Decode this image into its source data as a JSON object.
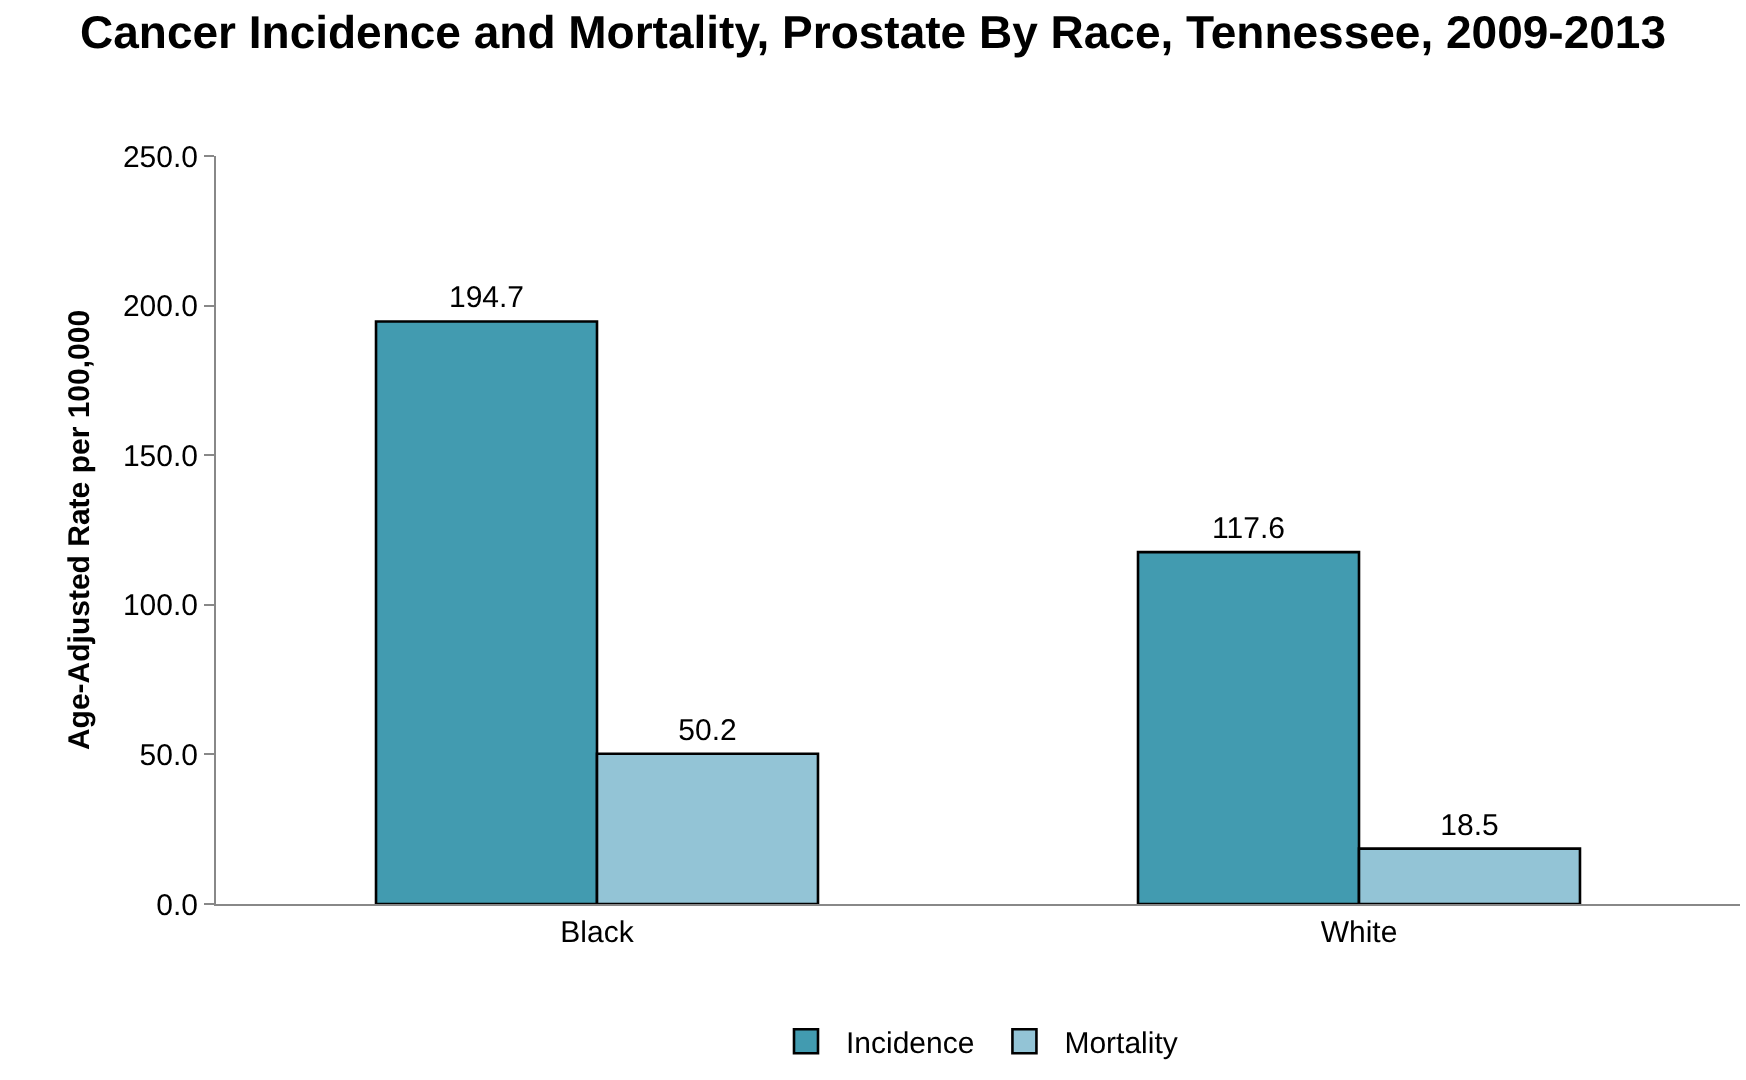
{
  "chart_data": {
    "type": "bar",
    "title": "Cancer Incidence and Mortality, Prostate By Race, Tennessee, 2009-2013",
    "ylabel": "Age-Adjusted Rate per 100,000",
    "categories": [
      "Black",
      "White"
    ],
    "series": [
      {
        "name": "Incidence",
        "color": "#429bb0",
        "values": [
          194.7,
          117.6
        ]
      },
      {
        "name": "Mortality",
        "color": "#93c4d6",
        "values": [
          50.2,
          18.5
        ]
      }
    ],
    "ylim": [
      0,
      250
    ],
    "yticks": [
      {
        "value": 0,
        "label": "0.0"
      },
      {
        "value": 50,
        "label": "50.0"
      },
      {
        "value": 100,
        "label": "100.0"
      },
      {
        "value": 150,
        "label": "150.0"
      },
      {
        "value": 200,
        "label": "200.0"
      },
      {
        "value": 250,
        "label": "250.0"
      }
    ],
    "data_labels": true,
    "grid": false,
    "legend": "bottom"
  }
}
